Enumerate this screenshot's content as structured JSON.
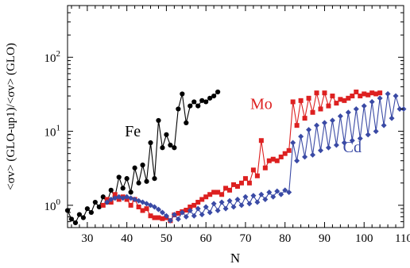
{
  "chart_data": {
    "type": "line",
    "xlabel": "N",
    "ylabel": "<σv> (GLO-up1)/<σv> (GLO)",
    "xlim": [
      25,
      110
    ],
    "ylim": [
      0.5,
      500
    ],
    "yscale": "log",
    "grid": false,
    "x_ticks": [
      30,
      40,
      50,
      60,
      70,
      80,
      90,
      100,
      110
    ],
    "y_ticks": [
      {
        "value": 1,
        "base": "10",
        "exp": "0"
      },
      {
        "value": 10,
        "base": "10",
        "exp": "1"
      },
      {
        "value": 100,
        "base": "10",
        "exp": "2"
      }
    ],
    "series": [
      {
        "name": "Fe",
        "color": "#000000",
        "marker": "circle",
        "points": [
          [
            25,
            0.85
          ],
          [
            26,
            0.65
          ],
          [
            27,
            0.58
          ],
          [
            28,
            0.75
          ],
          [
            29,
            0.68
          ],
          [
            30,
            0.9
          ],
          [
            31,
            0.8
          ],
          [
            32,
            1.1
          ],
          [
            33,
            0.95
          ],
          [
            34,
            1.3
          ],
          [
            35,
            1.1
          ],
          [
            36,
            1.6
          ],
          [
            37,
            1.3
          ],
          [
            38,
            2.4
          ],
          [
            39,
            1.7
          ],
          [
            40,
            2.3
          ],
          [
            41,
            1.5
          ],
          [
            42,
            3.2
          ],
          [
            43,
            2.0
          ],
          [
            44,
            3.5
          ],
          [
            45,
            2.1
          ],
          [
            46,
            7.0
          ],
          [
            47,
            2.3
          ],
          [
            48,
            14.0
          ],
          [
            49,
            6.0
          ],
          [
            50,
            9.0
          ],
          [
            51,
            6.5
          ],
          [
            52,
            6.0
          ],
          [
            53,
            20.0
          ],
          [
            54,
            32.0
          ],
          [
            55,
            13.0
          ],
          [
            56,
            22.0
          ],
          [
            57,
            25.0
          ],
          [
            58,
            22.0
          ],
          [
            59,
            26.0
          ],
          [
            60,
            25.0
          ],
          [
            61,
            28.0
          ],
          [
            62,
            30.0
          ],
          [
            63,
            34.0
          ]
        ]
      },
      {
        "name": "Mo",
        "color": "#dd2020",
        "marker": "square",
        "points": [
          [
            34,
            1.0
          ],
          [
            35,
            1.2
          ],
          [
            36,
            1.1
          ],
          [
            37,
            1.4
          ],
          [
            38,
            1.2
          ],
          [
            39,
            1.3
          ],
          [
            40,
            1.2
          ],
          [
            41,
            1.0
          ],
          [
            42,
            1.2
          ],
          [
            43,
            0.95
          ],
          [
            44,
            0.85
          ],
          [
            45,
            0.9
          ],
          [
            46,
            0.72
          ],
          [
            47,
            0.68
          ],
          [
            48,
            0.68
          ],
          [
            49,
            0.66
          ],
          [
            50,
            0.68
          ],
          [
            51,
            0.62
          ],
          [
            52,
            0.74
          ],
          [
            53,
            0.78
          ],
          [
            54,
            0.82
          ],
          [
            55,
            0.86
          ],
          [
            56,
            0.95
          ],
          [
            57,
            1.0
          ],
          [
            58,
            1.1
          ],
          [
            59,
            1.2
          ],
          [
            60,
            1.3
          ],
          [
            61,
            1.4
          ],
          [
            62,
            1.5
          ],
          [
            63,
            1.5
          ],
          [
            64,
            1.4
          ],
          [
            65,
            1.7
          ],
          [
            66,
            1.6
          ],
          [
            67,
            1.9
          ],
          [
            68,
            1.8
          ],
          [
            69,
            2.0
          ],
          [
            70,
            2.3
          ],
          [
            71,
            2.0
          ],
          [
            72,
            3.0
          ],
          [
            73,
            2.5
          ],
          [
            74,
            7.5
          ],
          [
            75,
            3.2
          ],
          [
            76,
            4.0
          ],
          [
            77,
            4.2
          ],
          [
            78,
            4.0
          ],
          [
            79,
            4.5
          ],
          [
            80,
            5.0
          ],
          [
            81,
            5.5
          ],
          [
            82,
            25.0
          ],
          [
            83,
            12.0
          ],
          [
            84,
            26.0
          ],
          [
            85,
            15.0
          ],
          [
            86,
            28.0
          ],
          [
            87,
            18.0
          ],
          [
            88,
            33.0
          ],
          [
            89,
            20.0
          ],
          [
            90,
            33.0
          ],
          [
            91,
            22.0
          ],
          [
            92,
            30.0
          ],
          [
            93,
            24.0
          ],
          [
            94,
            27.0
          ],
          [
            95,
            26.0
          ],
          [
            96,
            28.0
          ],
          [
            97,
            30.0
          ],
          [
            98,
            34.0
          ],
          [
            99,
            30.0
          ],
          [
            100,
            32.0
          ],
          [
            101,
            31.0
          ],
          [
            102,
            33.0
          ],
          [
            103,
            32.0
          ],
          [
            104,
            33.0
          ]
        ]
      },
      {
        "name": "Cd",
        "color": "#3a4aa5",
        "marker": "diamond",
        "points": [
          [
            35,
            1.1
          ],
          [
            36,
            1.2
          ],
          [
            37,
            1.25
          ],
          [
            38,
            1.3
          ],
          [
            39,
            1.25
          ],
          [
            40,
            1.3
          ],
          [
            41,
            1.25
          ],
          [
            42,
            1.2
          ],
          [
            43,
            1.15
          ],
          [
            44,
            1.1
          ],
          [
            45,
            1.05
          ],
          [
            46,
            1.0
          ],
          [
            47,
            0.95
          ],
          [
            48,
            0.88
          ],
          [
            49,
            0.8
          ],
          [
            50,
            0.72
          ],
          [
            51,
            0.62
          ],
          [
            52,
            0.75
          ],
          [
            53,
            0.65
          ],
          [
            54,
            0.8
          ],
          [
            55,
            0.7
          ],
          [
            56,
            0.85
          ],
          [
            57,
            0.72
          ],
          [
            58,
            0.9
          ],
          [
            59,
            0.75
          ],
          [
            60,
            0.95
          ],
          [
            61,
            0.8
          ],
          [
            62,
            1.05
          ],
          [
            63,
            0.85
          ],
          [
            64,
            1.1
          ],
          [
            65,
            0.9
          ],
          [
            66,
            1.15
          ],
          [
            67,
            0.95
          ],
          [
            68,
            1.2
          ],
          [
            69,
            1.0
          ],
          [
            70,
            1.3
          ],
          [
            71,
            1.05
          ],
          [
            72,
            1.35
          ],
          [
            73,
            1.1
          ],
          [
            74,
            1.4
          ],
          [
            75,
            1.2
          ],
          [
            76,
            1.5
          ],
          [
            77,
            1.3
          ],
          [
            78,
            1.55
          ],
          [
            79,
            1.4
          ],
          [
            80,
            1.6
          ],
          [
            81,
            1.5
          ],
          [
            82,
            7.0
          ],
          [
            83,
            4.0
          ],
          [
            84,
            8.5
          ],
          [
            85,
            4.5
          ],
          [
            86,
            10.5
          ],
          [
            87,
            4.8
          ],
          [
            88,
            12.0
          ],
          [
            89,
            5.5
          ],
          [
            90,
            13.0
          ],
          [
            91,
            6.0
          ],
          [
            92,
            14.0
          ],
          [
            93,
            6.5
          ],
          [
            94,
            16.0
          ],
          [
            95,
            7.0
          ],
          [
            96,
            18.0
          ],
          [
            97,
            7.5
          ],
          [
            98,
            20.0
          ],
          [
            99,
            8.0
          ],
          [
            100,
            22.0
          ],
          [
            101,
            9.0
          ],
          [
            102,
            25.0
          ],
          [
            103,
            10.0
          ],
          [
            104,
            28.0
          ],
          [
            105,
            12.0
          ],
          [
            106,
            32.0
          ],
          [
            107,
            15.0
          ],
          [
            108,
            30.0
          ],
          [
            109,
            20.0
          ],
          [
            110,
            20.0
          ]
        ]
      }
    ],
    "annotations": [
      {
        "text": "Fe",
        "color": "#000000",
        "x": 41.5,
        "y": 8.5
      },
      {
        "text": "Mo",
        "color": "#dd2020",
        "x": 74,
        "y": 20
      },
      {
        "text": "Cd",
        "color": "#3a4aa5",
        "x": 97,
        "y": 5.2
      }
    ]
  }
}
